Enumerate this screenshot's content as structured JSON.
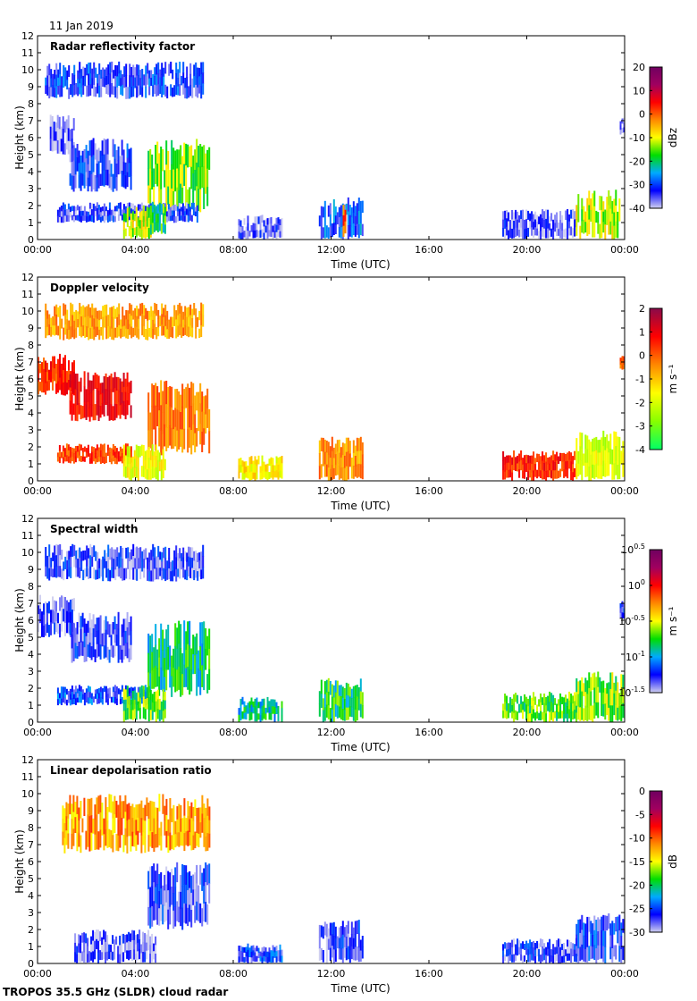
{
  "header": {
    "date": "11 Jan 2019"
  },
  "footer": {
    "instrument": "TROPOS 35.5 GHz (SLDR) cloud radar"
  },
  "palettes": {
    "rainbow": [
      "#d0d0f0",
      "#0000ff",
      "#00aaff",
      "#00dd00",
      "#ffff00",
      "#ff8800",
      "#ff0000",
      "#a00060",
      "#700060"
    ],
    "velocity": [
      "#00ff66",
      "#88ff00",
      "#ffff00",
      "#ff8800",
      "#ff0000",
      "#8a0a4a"
    ]
  },
  "chart_data": [
    {
      "type": "heatmap",
      "title": "Radar reflectivity factor",
      "xlabel": "Time (UTC)",
      "ylabel": "Height (km)",
      "xlim": [
        0,
        24
      ],
      "ylim": [
        0,
        12
      ],
      "xticks": [
        "00:00",
        "04:00",
        "08:00",
        "12:00",
        "16:00",
        "20:00",
        "00:00"
      ],
      "yticks": [
        "0",
        "1",
        "2",
        "3",
        "4",
        "5",
        "6",
        "7",
        "8",
        "9",
        "10",
        "11",
        "12"
      ],
      "colorbar": {
        "label": "dBz",
        "ticks": [
          "20",
          "10",
          "0",
          "-10",
          "-20",
          "-30",
          "-40"
        ],
        "min": -40,
        "max": 20,
        "palette": "rainbow"
      },
      "regions": [
        {
          "t": [
            0.3,
            6.8
          ],
          "h": [
            8.3,
            10.5
          ],
          "v": -32
        },
        {
          "t": [
            0.5,
            1.5
          ],
          "h": [
            5.0,
            7.5
          ],
          "v": -38
        },
        {
          "t": [
            1.3,
            3.8
          ],
          "h": [
            2.8,
            6.0
          ],
          "v": -33
        },
        {
          "t": [
            4.5,
            7.0
          ],
          "h": [
            1.5,
            6.0
          ],
          "v": -14
        },
        {
          "t": [
            0.8,
            6.5
          ],
          "h": [
            1.0,
            2.2
          ],
          "v": -34
        },
        {
          "t": [
            3.5,
            4.6
          ],
          "h": [
            0.0,
            2.0
          ],
          "v": -12
        },
        {
          "t": [
            4.6,
            5.2
          ],
          "h": [
            0.3,
            2.4
          ],
          "v": -18
        },
        {
          "t": [
            8.2,
            10.0
          ],
          "h": [
            0.0,
            1.5
          ],
          "v": -36
        },
        {
          "t": [
            11.5,
            13.3
          ],
          "h": [
            0.0,
            2.5
          ],
          "v": -30
        },
        {
          "t": [
            12.4,
            12.6
          ],
          "h": [
            0.0,
            2.6
          ],
          "v": 2
        },
        {
          "t": [
            19.0,
            22.0
          ],
          "h": [
            0.0,
            1.8
          ],
          "v": -36
        },
        {
          "t": [
            22.0,
            23.8
          ],
          "h": [
            0.0,
            3.0
          ],
          "v": -12
        },
        {
          "t": [
            23.8,
            24.0
          ],
          "h": [
            6.2,
            7.2
          ],
          "v": -34
        }
      ]
    },
    {
      "type": "heatmap",
      "title": "Doppler velocity",
      "xlabel": "Time (UTC)",
      "ylabel": "Height (km)",
      "xlim": [
        0,
        24
      ],
      "ylim": [
        0,
        12
      ],
      "xticks": [
        "00:00",
        "04:00",
        "08:00",
        "12:00",
        "16:00",
        "20:00",
        "00:00"
      ],
      "yticks": [
        "0",
        "1",
        "2",
        "3",
        "4",
        "5",
        "6",
        "7",
        "8",
        "9",
        "10",
        "11",
        "12"
      ],
      "colorbar": {
        "label": "m s⁻¹",
        "ticks": [
          "2",
          "1",
          "0",
          "-1",
          "-2",
          "-3",
          "-4"
        ],
        "min": -4,
        "max": 2,
        "palette": "velocity"
      },
      "regions": [
        {
          "t": [
            0.3,
            6.8
          ],
          "h": [
            8.3,
            10.5
          ],
          "v": -0.6
        },
        {
          "t": [
            0.0,
            1.5
          ],
          "h": [
            5.0,
            7.5
          ],
          "v": 0.4
        },
        {
          "t": [
            1.3,
            3.8
          ],
          "h": [
            3.5,
            6.5
          ],
          "v": 0.8
        },
        {
          "t": [
            4.5,
            7.0
          ],
          "h": [
            1.5,
            6.0
          ],
          "v": -0.3
        },
        {
          "t": [
            0.8,
            3.8
          ],
          "h": [
            1.0,
            2.2
          ],
          "v": 0.3
        },
        {
          "t": [
            3.5,
            5.2
          ],
          "h": [
            0.0,
            2.2
          ],
          "v": -1.8
        },
        {
          "t": [
            8.2,
            10.0
          ],
          "h": [
            0.0,
            1.5
          ],
          "v": -1.5
        },
        {
          "t": [
            11.5,
            13.3
          ],
          "h": [
            0.0,
            2.6
          ],
          "v": -0.5
        },
        {
          "t": [
            19.0,
            22.0
          ],
          "h": [
            0.0,
            1.8
          ],
          "v": 0.5
        },
        {
          "t": [
            22.0,
            24.0
          ],
          "h": [
            0.0,
            3.0
          ],
          "v": -2.0
        },
        {
          "t": [
            23.8,
            24.0
          ],
          "h": [
            6.5,
            7.5
          ],
          "v": -0.2
        }
      ]
    },
    {
      "type": "heatmap",
      "title": "Spectral width",
      "xlabel": "Time (UTC)",
      "ylabel": "Height (km)",
      "xlim": [
        0,
        24
      ],
      "ylim": [
        0,
        12
      ],
      "xticks": [
        "00:00",
        "04:00",
        "08:00",
        "12:00",
        "16:00",
        "20:00",
        "00:00"
      ],
      "yticks": [
        "0",
        "1",
        "2",
        "3",
        "4",
        "5",
        "6",
        "7",
        "8",
        "9",
        "10",
        "11",
        "12"
      ],
      "colorbar": {
        "label": "m s⁻¹",
        "ticks": [
          "10^0.5",
          "10^0",
          "10^-0.5",
          "10^-1",
          "10^-1.5"
        ],
        "min": -1.5,
        "max": 0.5,
        "palette": "rainbow"
      },
      "regions": [
        {
          "t": [
            0.3,
            6.8
          ],
          "h": [
            8.3,
            10.5
          ],
          "v": -1.3
        },
        {
          "t": [
            0.0,
            1.5
          ],
          "h": [
            5.0,
            7.5
          ],
          "v": -1.35
        },
        {
          "t": [
            1.3,
            3.8
          ],
          "h": [
            3.5,
            6.5
          ],
          "v": -1.3
        },
        {
          "t": [
            4.5,
            7.0
          ],
          "h": [
            1.5,
            6.0
          ],
          "v": -0.85
        },
        {
          "t": [
            0.8,
            4.5
          ],
          "h": [
            1.0,
            2.2
          ],
          "v": -1.2
        },
        {
          "t": [
            3.5,
            5.2
          ],
          "h": [
            0.0,
            2.2
          ],
          "v": -0.7
        },
        {
          "t": [
            8.2,
            10.0
          ],
          "h": [
            0.0,
            1.5
          ],
          "v": -0.9
        },
        {
          "t": [
            11.5,
            13.3
          ],
          "h": [
            0.0,
            2.6
          ],
          "v": -0.8
        },
        {
          "t": [
            19.0,
            22.0
          ],
          "h": [
            0.0,
            1.8
          ],
          "v": -0.7
        },
        {
          "t": [
            22.0,
            24.0
          ],
          "h": [
            0.0,
            3.0
          ],
          "v": -0.65
        },
        {
          "t": [
            23.8,
            24.0
          ],
          "h": [
            6.0,
            7.2
          ],
          "v": -1.3
        }
      ]
    },
    {
      "type": "heatmap",
      "title": "Linear depolarisation ratio",
      "xlabel": "Time (UTC)",
      "ylabel": "Height (km)",
      "xlim": [
        0,
        24
      ],
      "ylim": [
        0,
        12
      ],
      "xticks": [
        "00:00",
        "04:00",
        "08:00",
        "12:00",
        "16:00",
        "20:00",
        "00:00"
      ],
      "yticks": [
        "0",
        "1",
        "2",
        "3",
        "4",
        "5",
        "6",
        "7",
        "8",
        "9",
        "10",
        "11",
        "12"
      ],
      "colorbar": {
        "label": "dB",
        "ticks": [
          "0",
          "-5",
          "-10",
          "-15",
          "-20",
          "-25",
          "-30"
        ],
        "min": -30,
        "max": 0,
        "palette": "rainbow"
      },
      "regions": [
        {
          "t": [
            4.5,
            7.0
          ],
          "h": [
            2.0,
            6.0
          ],
          "v": -27
        },
        {
          "t": [
            1.5,
            4.8
          ],
          "h": [
            0.0,
            2.0
          ],
          "v": -28
        },
        {
          "t": [
            11.5,
            13.3
          ],
          "h": [
            0.0,
            2.6
          ],
          "v": -27
        },
        {
          "t": [
            22.0,
            24.0
          ],
          "h": [
            0.0,
            3.0
          ],
          "v": -26
        },
        {
          "t": [
            19.0,
            22.0
          ],
          "h": [
            0.0,
            1.5
          ],
          "v": -27
        },
        {
          "t": [
            8.2,
            10.0
          ],
          "h": [
            0.0,
            1.2
          ],
          "v": -26
        },
        {
          "t": [
            1.0,
            7.0
          ],
          "h": [
            6.5,
            10.0
          ],
          "v": -12
        }
      ]
    }
  ]
}
